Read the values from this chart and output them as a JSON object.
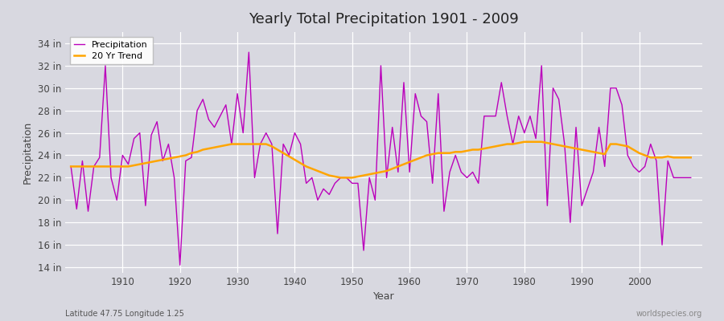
{
  "title": "Yearly Total Precipitation 1901 - 2009",
  "xlabel": "Year",
  "ylabel": "Precipitation",
  "subtitle": "Latitude 47.75 Longitude 1.25",
  "watermark": "worldspecies.org",
  "bg_color": "#d8d8e0",
  "plot_bg_color": "#d8d8e0",
  "precip_color": "#bb00bb",
  "trend_color": "#ffa500",
  "ylim": [
    13.5,
    35.0
  ],
  "yticks": [
    14,
    16,
    18,
    20,
    22,
    24,
    26,
    28,
    30,
    32,
    34
  ],
  "xticks": [
    1910,
    1920,
    1930,
    1940,
    1950,
    1960,
    1970,
    1980,
    1990,
    2000
  ],
  "years": [
    1901,
    1902,
    1903,
    1904,
    1905,
    1906,
    1907,
    1908,
    1909,
    1910,
    1911,
    1912,
    1913,
    1914,
    1915,
    1916,
    1917,
    1918,
    1919,
    1920,
    1921,
    1922,
    1923,
    1924,
    1925,
    1926,
    1927,
    1928,
    1929,
    1930,
    1931,
    1932,
    1933,
    1934,
    1935,
    1936,
    1937,
    1938,
    1939,
    1940,
    1941,
    1942,
    1943,
    1944,
    1945,
    1946,
    1947,
    1948,
    1949,
    1950,
    1951,
    1952,
    1953,
    1954,
    1955,
    1956,
    1957,
    1958,
    1959,
    1960,
    1961,
    1962,
    1963,
    1964,
    1965,
    1966,
    1967,
    1968,
    1969,
    1970,
    1971,
    1972,
    1973,
    1974,
    1975,
    1976,
    1977,
    1978,
    1979,
    1980,
    1981,
    1982,
    1983,
    1984,
    1985,
    1986,
    1987,
    1988,
    1989,
    1990,
    1991,
    1992,
    1993,
    1994,
    1995,
    1996,
    1997,
    1998,
    1999,
    2000,
    2001,
    2002,
    2003,
    2004,
    2005,
    2006,
    2007,
    2008,
    2009
  ],
  "precip": [
    23.0,
    19.2,
    23.5,
    19.0,
    23.0,
    23.8,
    32.0,
    22.0,
    20.0,
    24.0,
    23.2,
    25.5,
    26.0,
    19.5,
    25.8,
    27.0,
    23.5,
    25.0,
    22.0,
    14.2,
    23.5,
    23.8,
    28.0,
    29.0,
    27.2,
    26.5,
    27.5,
    28.5,
    25.0,
    29.5,
    26.0,
    33.2,
    22.0,
    25.0,
    26.0,
    25.0,
    17.0,
    25.0,
    24.0,
    26.0,
    25.0,
    21.5,
    22.0,
    20.0,
    21.0,
    20.5,
    21.5,
    22.0,
    22.0,
    21.5,
    21.5,
    15.5,
    22.0,
    20.0,
    32.0,
    22.0,
    26.5,
    22.5,
    30.5,
    22.5,
    29.5,
    27.5,
    27.0,
    21.5,
    29.5,
    19.0,
    22.5,
    24.0,
    22.5,
    22.0,
    22.5,
    21.5,
    27.5,
    27.5,
    27.5,
    30.5,
    27.5,
    25.0,
    27.5,
    26.0,
    27.5,
    25.5,
    32.0,
    19.5,
    30.0,
    29.0,
    25.0,
    18.0,
    26.5,
    19.5,
    21.0,
    22.5,
    26.5,
    23.0,
    30.0,
    30.0,
    28.5,
    24.0,
    23.0,
    22.5,
    23.0,
    25.0,
    23.5,
    16.0,
    23.5,
    22.0,
    22.0,
    22.0,
    22.0
  ],
  "trend": [
    23.0,
    23.0,
    23.0,
    23.0,
    23.0,
    23.0,
    23.0,
    23.0,
    23.0,
    23.0,
    23.0,
    23.1,
    23.2,
    23.3,
    23.4,
    23.5,
    23.6,
    23.7,
    23.8,
    23.9,
    24.0,
    24.2,
    24.3,
    24.5,
    24.6,
    24.7,
    24.8,
    24.9,
    25.0,
    25.0,
    25.0,
    25.0,
    25.0,
    25.0,
    25.0,
    24.8,
    24.5,
    24.2,
    23.9,
    23.6,
    23.3,
    23.0,
    22.8,
    22.6,
    22.4,
    22.2,
    22.1,
    22.0,
    22.0,
    22.0,
    22.1,
    22.2,
    22.3,
    22.4,
    22.5,
    22.6,
    22.8,
    23.0,
    23.2,
    23.4,
    23.6,
    23.8,
    24.0,
    24.1,
    24.2,
    24.2,
    24.2,
    24.3,
    24.3,
    24.4,
    24.5,
    24.5,
    24.6,
    24.7,
    24.8,
    24.9,
    25.0,
    25.0,
    25.1,
    25.2,
    25.2,
    25.2,
    25.2,
    25.1,
    25.0,
    24.9,
    24.8,
    24.7,
    24.6,
    24.5,
    24.4,
    24.3,
    24.2,
    24.1,
    25.0,
    25.0,
    24.9,
    24.8,
    24.5,
    24.2,
    24.0,
    23.8,
    23.8,
    23.8,
    23.9,
    23.8,
    23.8,
    23.8,
    23.8
  ]
}
